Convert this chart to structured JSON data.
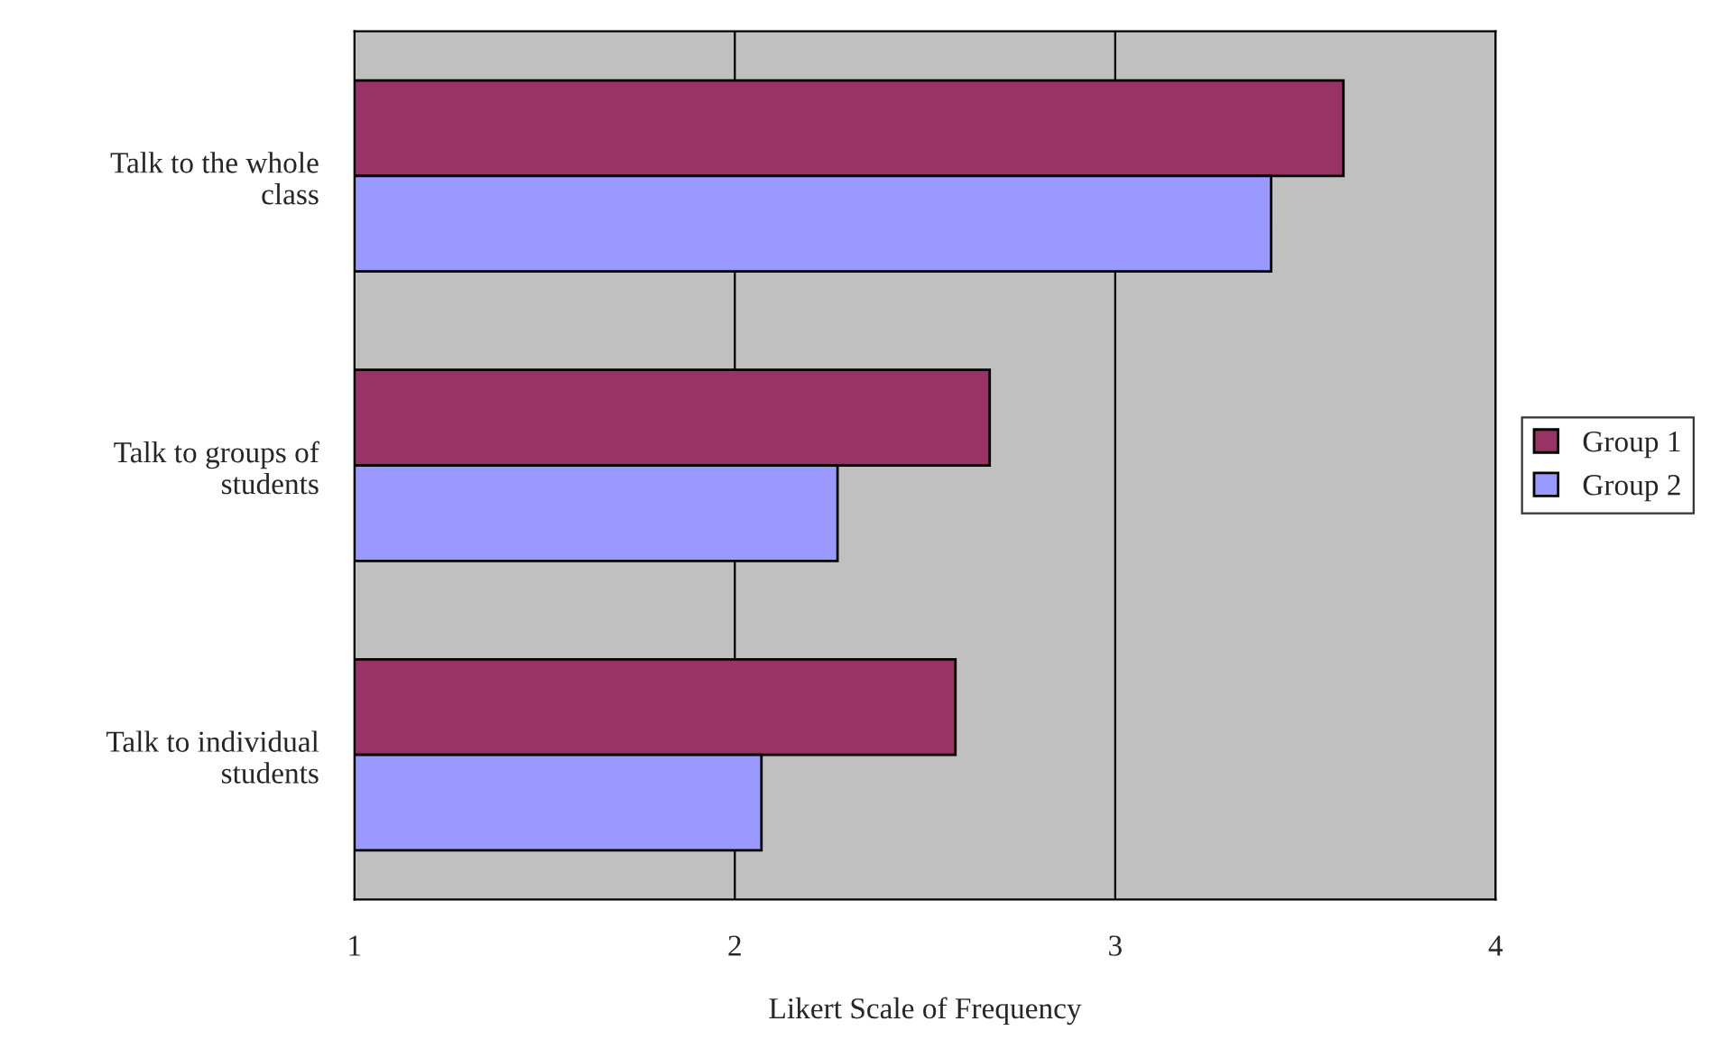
{
  "chart_data": {
    "type": "bar",
    "orientation": "horizontal",
    "xlabel": "Likert Scale of Frequency",
    "categories": [
      "Talk to the whole\nclass",
      "Talk to groups of\nstudents",
      "Talk to individual\nstudents"
    ],
    "series": [
      {
        "name": "Group 1",
        "color": "#993366",
        "values": [
          3.6,
          2.67,
          2.58
        ]
      },
      {
        "name": "Group 2",
        "color": "#9999ff",
        "values": [
          3.41,
          2.27,
          2.07
        ]
      }
    ],
    "xlim": [
      1,
      4
    ],
    "xticks": [
      1,
      2,
      3,
      4
    ],
    "grid": "x",
    "legend": "right"
  }
}
